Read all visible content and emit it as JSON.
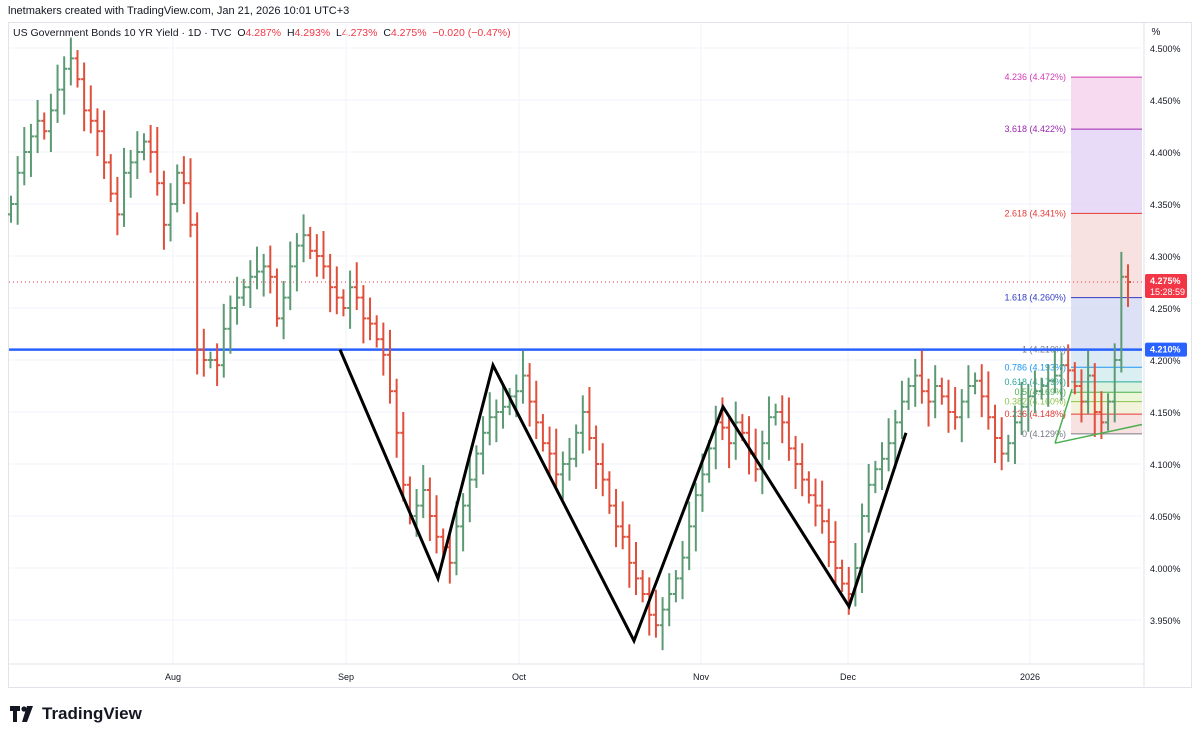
{
  "header": {
    "caption": "lnetmakers created with TradingView.com, Jan 21, 2026 10:01 UTC+3"
  },
  "symbol": {
    "name": "US Government Bonds 10 YR Yield · 1D · TVC",
    "o_label": "O",
    "o": "4.287%",
    "h_label": "H",
    "h": "4.293%",
    "l_label": "L",
    "l": "4.273%",
    "c_label": "C",
    "c": "4.275%",
    "change": "−0.020 (−0.47%)"
  },
  "scale_button": "%",
  "price_badge": {
    "value": "4.275%",
    "countdown": "15:28:59",
    "color": "#f23645"
  },
  "level_badge": {
    "value": "4.210%",
    "color": "#2962ff"
  },
  "logo_text": "TradingView",
  "colors": {
    "up": "#5b9a73",
    "down": "#e04f3b",
    "zigzag": "#000000",
    "hline": "#2962ff"
  },
  "fib_levels": [
    {
      "label": "4.236 (4.472%)",
      "color": "#d23bb5",
      "fill": "#f6d3ec"
    },
    {
      "label": "3.618 (4.422%)",
      "color": "#9c27b0",
      "fill": "#e3d5f7"
    },
    {
      "label": "2.618 (4.341%)",
      "color": "#e53935",
      "fill": "#f6dcdc"
    },
    {
      "label": "1.618 (4.260%)",
      "color": "#2f3bc2",
      "fill": "#d6dcf5"
    },
    {
      "label": "1 (4.210%)",
      "color": "#787b86",
      "fill": "#d5e6f3"
    },
    {
      "label": "0.786 (4.193%)",
      "color": "#2196f3",
      "fill": "#d4ecef"
    },
    {
      "label": "0.618 (4.179%)",
      "color": "#26a69a",
      "fill": "#d7f0dc"
    },
    {
      "label": "0.5 (4.169%)",
      "color": "#4caf50",
      "fill": "#e9f4d2"
    },
    {
      "label": "0.382 (4.160%)",
      "color": "#8bc34a",
      "fill": "#f1f0d5"
    },
    {
      "label": "0.236 (4.148%)",
      "color": "#e53935",
      "fill": "#f6dcdc"
    },
    {
      "label": "0 (4.129%)",
      "color": "#787b86",
      "fill": ""
    }
  ],
  "chart_data": {
    "type": "ohlc-bar",
    "title": "US Government Bonds 10 YR Yield · 1D · TVC",
    "y_ticks": [
      "4.500%",
      "4.450%",
      "4.400%",
      "4.350%",
      "4.300%",
      "4.250%",
      "4.200%",
      "4.150%",
      "4.100%",
      "4.050%",
      "4.000%",
      "3.950%"
    ],
    "x_ticks": [
      "Aug",
      "Sep",
      "Oct",
      "Nov",
      "Dec",
      "2026"
    ],
    "ylim": [
      3.91,
      4.5
    ],
    "last_price": 4.275,
    "horizontal_level": 4.21,
    "zigzag_points": [
      [
        4.21,
        "Sep"
      ],
      [
        3.99,
        "mid-Sep"
      ],
      [
        4.195,
        "late-Sep"
      ],
      [
        3.93,
        "mid-Oct"
      ],
      [
        4.155,
        "early-Nov"
      ],
      [
        3.963,
        "Dec"
      ],
      [
        4.13,
        "mid-Dec"
      ]
    ],
    "fib_extension": {
      "base": 4.129,
      "top": 4.21
    }
  }
}
